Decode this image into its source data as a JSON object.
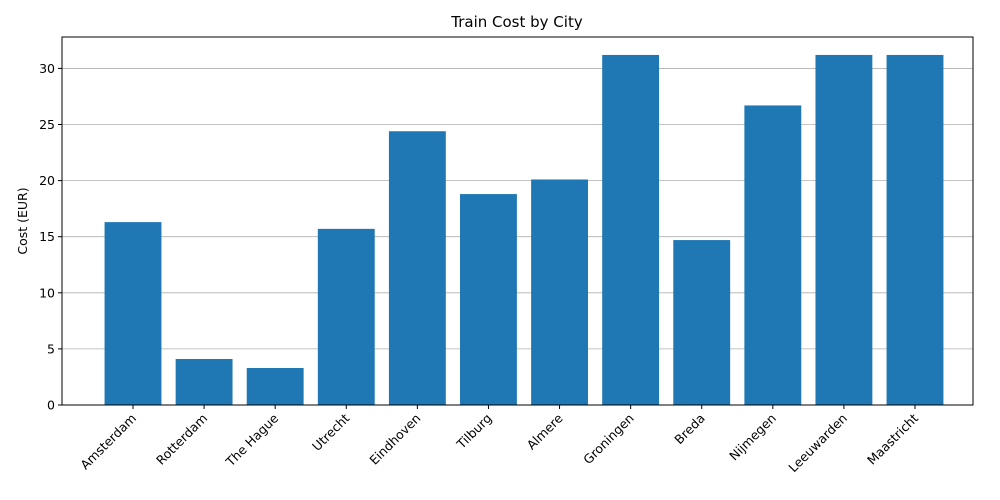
{
  "chart_data": {
    "type": "bar",
    "title": "Train Cost by City",
    "xlabel": "",
    "ylabel": "Cost (EUR)",
    "categories": [
      "Amsterdam",
      "Rotterdam",
      "The Hague",
      "Utrecht",
      "Eindhoven",
      "Tilburg",
      "Almere",
      "Groningen",
      "Breda",
      "Nijmegen",
      "Leeuwarden",
      "Maastricht"
    ],
    "values": [
      16.3,
      4.1,
      3.3,
      15.7,
      24.4,
      18.8,
      20.1,
      31.2,
      14.7,
      26.7,
      31.2,
      31.2
    ],
    "ylim": [
      0,
      32.8
    ],
    "yticks": [
      0,
      5,
      10,
      15,
      20,
      25,
      30
    ],
    "grid": "y",
    "bar_color": "#1f77b4"
  }
}
